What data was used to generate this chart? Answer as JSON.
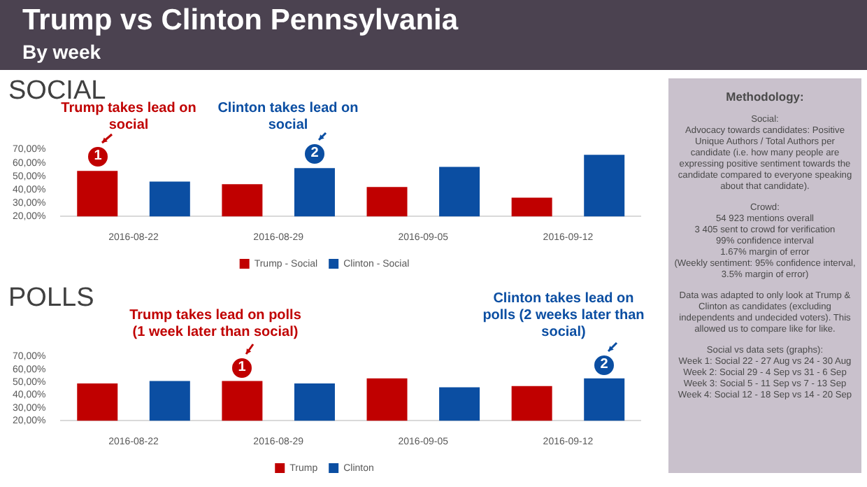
{
  "chart_data": [
    {
      "type": "other",
      "title": "Trump vs Clinton Pennsylvania",
      "subtitle": "By week",
      "annotations": [
        "Methodology:",
        "Social:",
        "Advocacy towards candidates: Positive Unique Authors / Total Authors per candidate (i.e. how many people are expressing positive sentiment towards the candidate compared to everyone speaking about that candidate).",
        "Crowd:",
        "54 923 mentions overall",
        "3 405 sent to crowd for verification",
        "99% confidence interval",
        "1.67% margin of error",
        "(Weekly sentiment: 95% confidence interval, 3.5% margin of error)",
        "Data was adapted to only look at Trump & Clinton as candidates (excluding independents and undecided voters). This allowed us to compare like for like.",
        "Social vs data sets (graphs):",
        "Week 1: Social 22 - 27 Aug vs 24 - 30 Aug",
        "Week 2: Social 29 - 4 Sep vs 31 - 6 Sep",
        "Week 3: Social 5 - 11 Sep vs 7 - 13 Sep",
        "Week 4: Social 12 - 18 Sep vs 14 - 20 Sep"
      ]
    },
    {
      "type": "bar",
      "title": "SOCIAL",
      "categories": [
        "2016-08-22",
        "2016-08-29",
        "2016-09-05",
        "2016-09-12"
      ],
      "series": [
        {
          "name": "Trump - Social",
          "color": "#c00000",
          "values": [
            54,
            44,
            42,
            34
          ]
        },
        {
          "name": "Clinton - Social",
          "color": "#0b4ea2",
          "values": [
            46,
            56,
            57,
            66
          ]
        }
      ],
      "ylim": [
        20,
        70
      ],
      "yticks": [
        {
          "value": 20,
          "label": "20,00%"
        },
        {
          "value": 30,
          "label": "30,00%"
        },
        {
          "value": 40,
          "label": "40,00%"
        },
        {
          "value": 50,
          "label": "50,00%"
        },
        {
          "value": 60,
          "label": "60,00%"
        },
        {
          "value": 70,
          "label": "70,00%"
        }
      ],
      "grid": false,
      "legend": "bottom",
      "annotations": [
        "Trump takes lead on social",
        "1",
        "Clinton takes lead on social",
        "2"
      ]
    },
    {
      "type": "bar",
      "title": "POLLS",
      "categories": [
        "2016-08-22",
        "2016-08-29",
        "2016-09-05",
        "2016-09-12"
      ],
      "series": [
        {
          "name": "Trump",
          "color": "#c00000",
          "values": [
            49,
            51,
            53,
            47
          ]
        },
        {
          "name": "Clinton",
          "color": "#0b4ea2",
          "values": [
            51,
            49,
            46,
            53
          ]
        }
      ],
      "ylim": [
        20,
        70
      ],
      "yticks": [
        {
          "value": 20,
          "label": "20,00%"
        },
        {
          "value": 30,
          "label": "30,00%"
        },
        {
          "value": 40,
          "label": "40,00%"
        },
        {
          "value": 50,
          "label": "50,00%"
        },
        {
          "value": 60,
          "label": "60,00%"
        },
        {
          "value": 70,
          "label": "70,00%"
        }
      ],
      "grid": false,
      "legend": "bottom",
      "annotations": [
        "Trump takes lead on polls (1 week later than social)",
        "1",
        "Clinton takes lead on polls (2 weeks later than social)",
        "2"
      ]
    }
  ]
}
